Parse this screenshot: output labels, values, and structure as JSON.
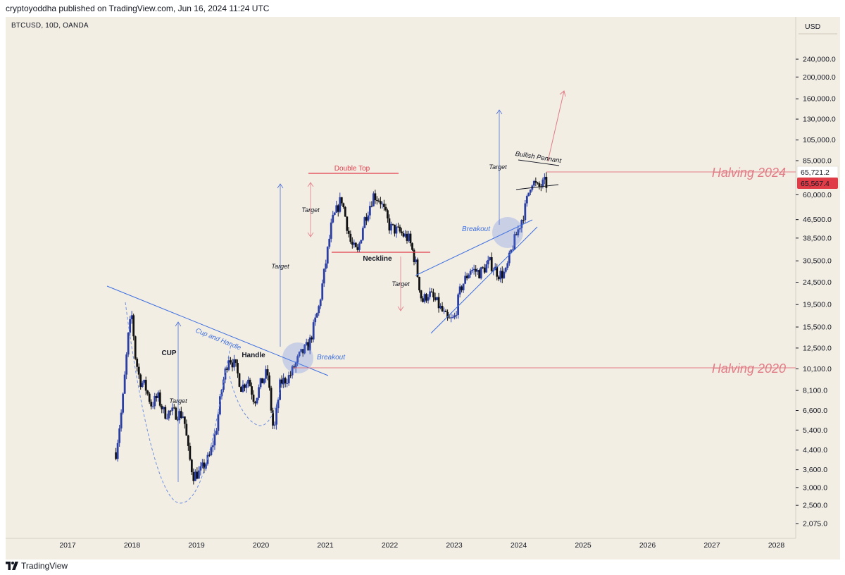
{
  "header": {
    "published": "cryptoyoddha published on TradingView.com, Jun 16, 2024 11:24 UTC"
  },
  "symbol": "BTCUSD, 10D, OANDA",
  "brand": "TradingView",
  "colors": {
    "background": "#f3eee4",
    "up_candle": "#2b3fa3",
    "down_candle": "#111111",
    "trendline": "#3d6fe0",
    "halving": "#e07c85",
    "double_top": "#e23d4b",
    "price_badge_current": "#e03c48"
  },
  "chart_data": {
    "type": "candlestick",
    "y_scale": "log",
    "y_axis_unit": "USD",
    "y_ticks": [
      "240,000.0",
      "200,000.0",
      "160,000.0",
      "130,000.0",
      "105,000.0",
      "85,000.0",
      "60,000.0",
      "46,500.0",
      "38,500.0",
      "30,500.0",
      "24,500.0",
      "19,500.0",
      "15,500.0",
      "12,500.0",
      "10,100.0",
      "8,100.0",
      "6,600.0",
      "5,400.0",
      "4,400.0",
      "3,600.0",
      "3,000.0",
      "2,500.0",
      "2,075.0"
    ],
    "x_ticks": [
      "2017",
      "2018",
      "2019",
      "2020",
      "2021",
      "2022",
      "2023",
      "2024",
      "2025",
      "2026",
      "2027",
      "2028"
    ],
    "price_badges": [
      {
        "value": "65,721.2",
        "style": "last"
      },
      {
        "value": "65,567.4",
        "style": "current"
      }
    ],
    "series": [
      {
        "date": "2017.75",
        "close": 4300
      },
      {
        "date": "2017.85",
        "close": 7000
      },
      {
        "date": "2017.95",
        "close": 15000
      },
      {
        "date": "2018.0",
        "close": 17500
      },
      {
        "date": "2018.05",
        "close": 11500
      },
      {
        "date": "2018.12",
        "close": 9000
      },
      {
        "date": "2018.2",
        "close": 8500
      },
      {
        "date": "2018.3",
        "close": 7000
      },
      {
        "date": "2018.4",
        "close": 7600
      },
      {
        "date": "2018.5",
        "close": 6400
      },
      {
        "date": "2018.6",
        "close": 6500
      },
      {
        "date": "2018.7",
        "close": 6400
      },
      {
        "date": "2018.8",
        "close": 6300
      },
      {
        "date": "2018.88",
        "close": 4200
      },
      {
        "date": "2018.95",
        "close": 3400
      },
      {
        "date": "2019.05",
        "close": 3500
      },
      {
        "date": "2019.2",
        "close": 4100
      },
      {
        "date": "2019.3",
        "close": 5300
      },
      {
        "date": "2019.4",
        "close": 8500
      },
      {
        "date": "2019.5",
        "close": 11500
      },
      {
        "date": "2019.6",
        "close": 10400
      },
      {
        "date": "2019.7",
        "close": 8300
      },
      {
        "date": "2019.8",
        "close": 9200
      },
      {
        "date": "2019.9",
        "close": 7300
      },
      {
        "date": "2020.0",
        "close": 8700
      },
      {
        "date": "2020.1",
        "close": 9800
      },
      {
        "date": "2020.2",
        "close": 5200
      },
      {
        "date": "2020.3",
        "close": 8700
      },
      {
        "date": "2020.45",
        "close": 9400
      },
      {
        "date": "2020.6",
        "close": 11500
      },
      {
        "date": "2020.75",
        "close": 13000
      },
      {
        "date": "2020.9",
        "close": 19000
      },
      {
        "date": "2021.0",
        "close": 29000
      },
      {
        "date": "2021.1",
        "close": 45000
      },
      {
        "date": "2021.25",
        "close": 58000
      },
      {
        "date": "2021.4",
        "close": 36000
      },
      {
        "date": "2021.5",
        "close": 33000
      },
      {
        "date": "2021.6",
        "close": 46000
      },
      {
        "date": "2021.75",
        "close": 60000
      },
      {
        "date": "2021.85",
        "close": 57000
      },
      {
        "date": "2022.0",
        "close": 43000
      },
      {
        "date": "2022.15",
        "close": 41000
      },
      {
        "date": "2022.3",
        "close": 38000
      },
      {
        "date": "2022.4",
        "close": 30000
      },
      {
        "date": "2022.5",
        "close": 20000
      },
      {
        "date": "2022.6",
        "close": 22000
      },
      {
        "date": "2022.75",
        "close": 19500
      },
      {
        "date": "2022.9",
        "close": 16500
      },
      {
        "date": "2023.0",
        "close": 16800
      },
      {
        "date": "2023.1",
        "close": 23000
      },
      {
        "date": "2023.25",
        "close": 28000
      },
      {
        "date": "2023.4",
        "close": 27000
      },
      {
        "date": "2023.55",
        "close": 30000
      },
      {
        "date": "2023.7",
        "close": 26500
      },
      {
        "date": "2023.8",
        "close": 27000
      },
      {
        "date": "2023.9",
        "close": 35000
      },
      {
        "date": "2024.0",
        "close": 42500
      },
      {
        "date": "2024.1",
        "close": 52000
      },
      {
        "date": "2024.2",
        "close": 70000
      },
      {
        "date": "2024.3",
        "close": 64000
      },
      {
        "date": "2024.4",
        "close": 68000
      },
      {
        "date": "2024.45",
        "close": 65567
      }
    ],
    "annotations": [
      {
        "text": "CUP"
      },
      {
        "text": "Handle"
      },
      {
        "text": "Cup and Handle"
      },
      {
        "text": "Breakout"
      },
      {
        "text": "Target"
      },
      {
        "text": "Double Top"
      },
      {
        "text": "Neckline"
      },
      {
        "text": "Breakout"
      },
      {
        "text": "Bullish Pennant"
      },
      {
        "text": "Halving 2020"
      },
      {
        "text": "Halving 2024"
      },
      {
        "text": "Target"
      },
      {
        "text": "Target"
      },
      {
        "text": "Target"
      },
      {
        "text": "Target"
      }
    ]
  }
}
